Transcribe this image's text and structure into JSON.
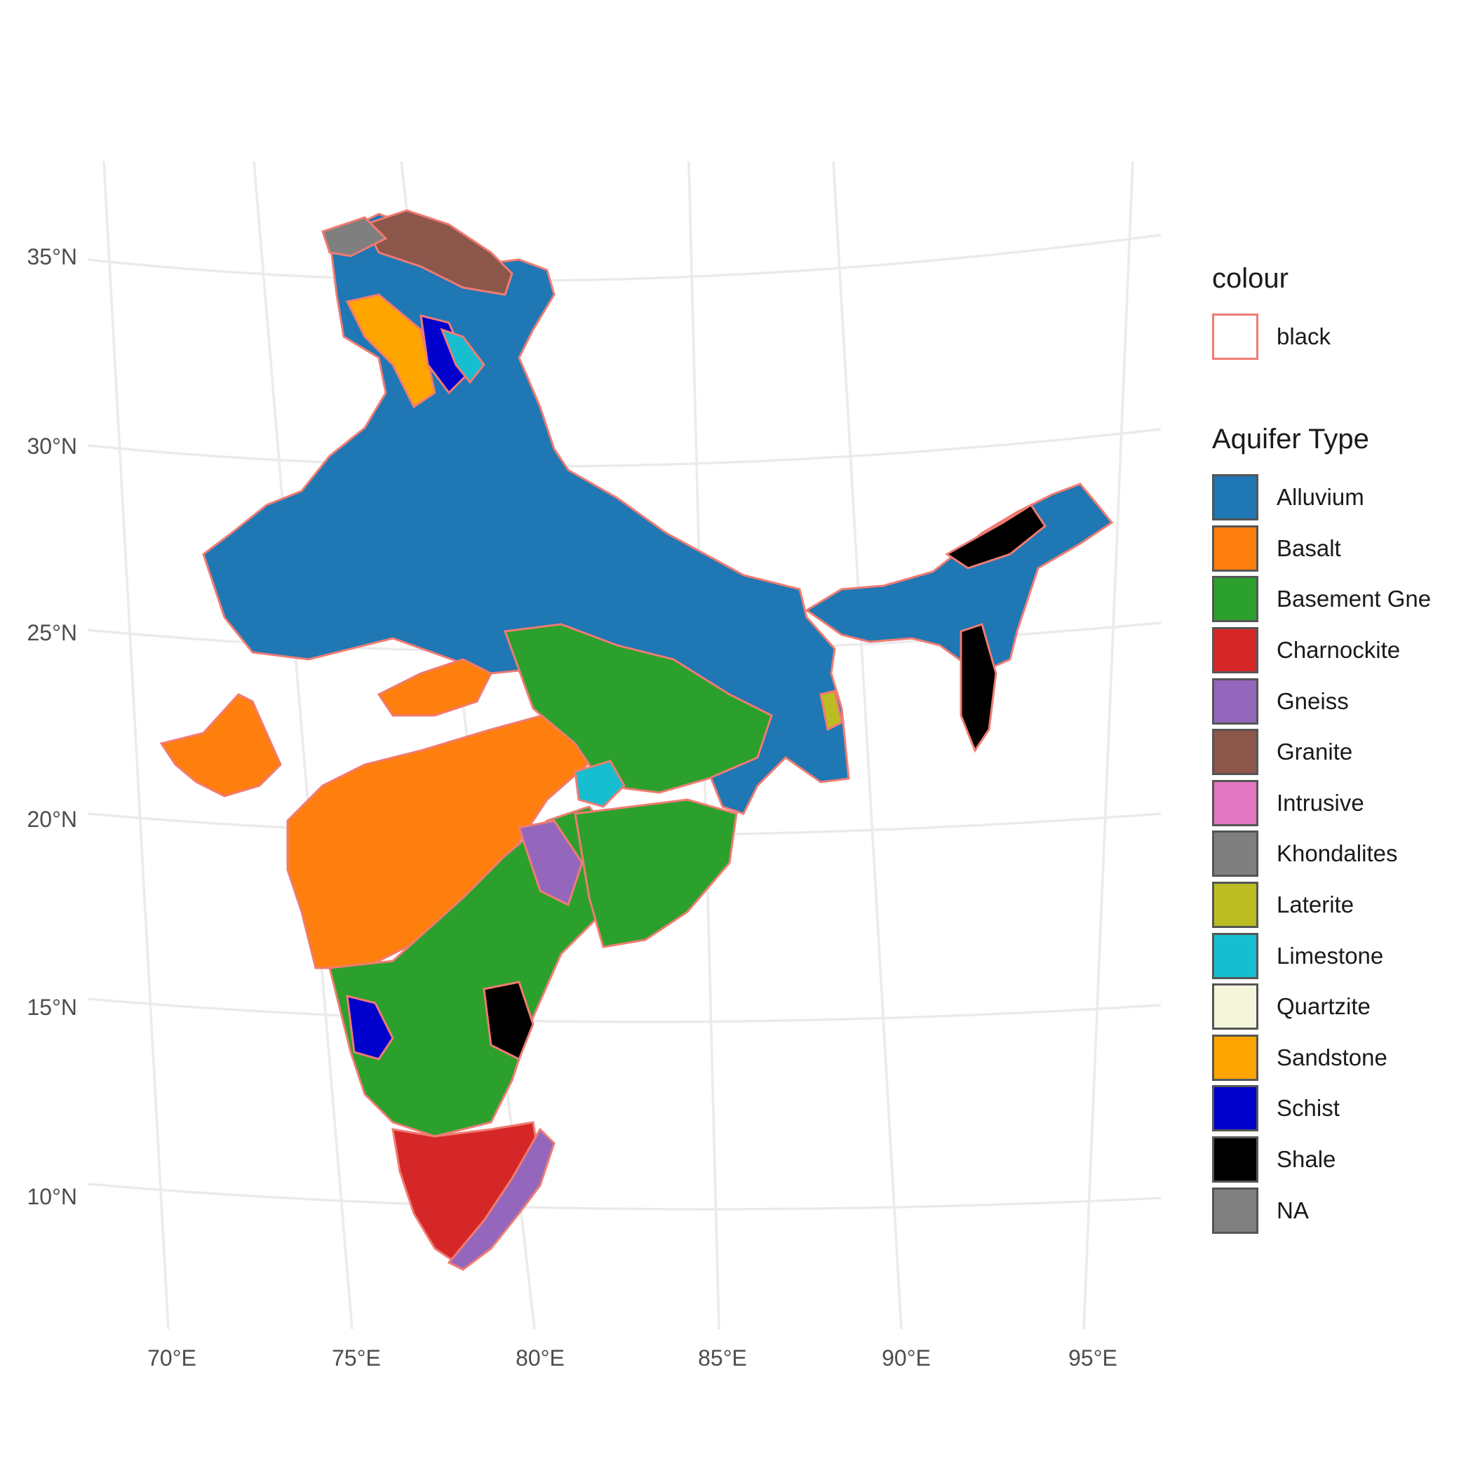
{
  "map": {
    "lat_labels": [
      "35°N",
      "30°N",
      "25°N",
      "20°N",
      "15°N",
      "10°N"
    ],
    "lon_labels": [
      "70°E",
      "75°E",
      "80°E",
      "85°E",
      "90°E",
      "95°E"
    ],
    "gridline_color": "#ebebeb",
    "boundary_color": "#f07b72"
  },
  "legend_colour": {
    "title": "colour",
    "items": [
      {
        "label": "black",
        "fill": "#ffffff",
        "border": "#f07b72"
      }
    ]
  },
  "legend_aquifer": {
    "title": "Aquifer Type",
    "items": [
      {
        "label": "Alluvium",
        "color": "#1f77b4"
      },
      {
        "label": "Basalt",
        "color": "#ff7f0e"
      },
      {
        "label": "Basement Gne",
        "color": "#2ca02c"
      },
      {
        "label": "Charnockite",
        "color": "#d62728"
      },
      {
        "label": "Gneiss",
        "color": "#9467bd"
      },
      {
        "label": "Granite",
        "color": "#8c564b"
      },
      {
        "label": "Intrusive",
        "color": "#e377c2"
      },
      {
        "label": "Khondalites",
        "color": "#7f7f7f"
      },
      {
        "label": "Laterite",
        "color": "#bcbd22"
      },
      {
        "label": "Limestone",
        "color": "#17becf"
      },
      {
        "label": "Quartzite",
        "color": "#f5f5dc"
      },
      {
        "label": "Sandstone",
        "color": "#ffa500"
      },
      {
        "label": "Schist",
        "color": "#0000cd"
      },
      {
        "label": "Shale",
        "color": "#000000"
      },
      {
        "label": "NA",
        "color": "#808080"
      }
    ]
  }
}
